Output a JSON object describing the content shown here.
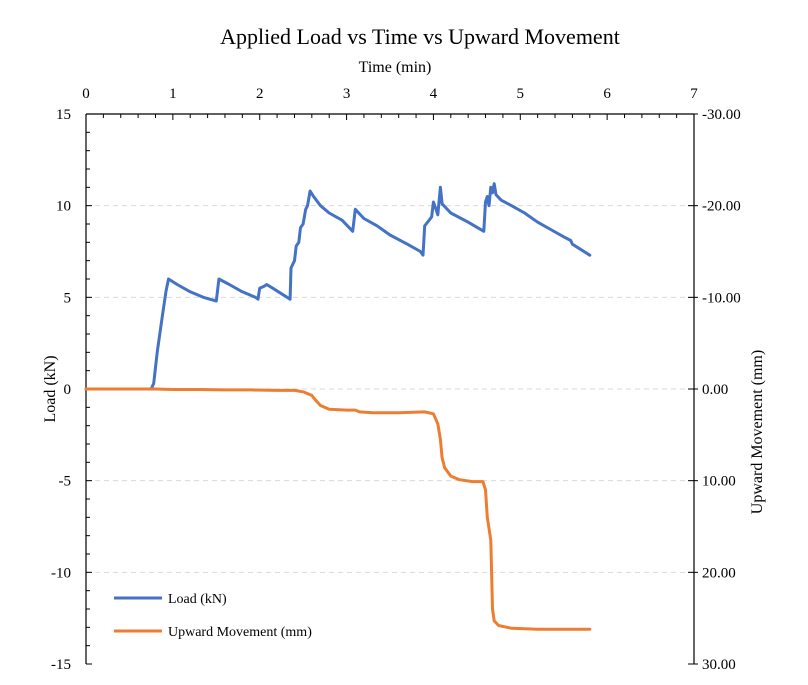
{
  "chart_data": {
    "type": "line",
    "title": "Applied Load vs Time vs Upward Movement",
    "xlabel": "Time (min)",
    "ylabel_left": "Load  (kN)",
    "ylabel_right": "Upward  Movement (mm)",
    "xlim": [
      0,
      7
    ],
    "ylim_left": [
      -15,
      15
    ],
    "ylim_right": [
      -30,
      30
    ],
    "right_axis_reversed": true,
    "x_ticks": [
      "0",
      "1",
      "2",
      "3",
      "4",
      "5",
      "6",
      "7"
    ],
    "y_left_ticks": [
      "15",
      "10",
      "5",
      "0",
      "-5",
      "-10",
      "-15"
    ],
    "y_right_ticks": [
      "-30.00",
      "-20.00",
      "-10.00",
      "0.00",
      "10.00",
      "20.00",
      "30.00"
    ],
    "x_axis_position": "top",
    "grid": "horizontal dashed",
    "legend_position": "bottom-left",
    "series": [
      {
        "name": "Load (kN)",
        "axis": "left",
        "color": "#4472C4",
        "points": [
          [
            0,
            0
          ],
          [
            0.75,
            0
          ],
          [
            0.78,
            0.3
          ],
          [
            0.82,
            2
          ],
          [
            0.88,
            4
          ],
          [
            0.92,
            5.3
          ],
          [
            0.95,
            6.0
          ],
          [
            1.05,
            5.7
          ],
          [
            1.2,
            5.3
          ],
          [
            1.35,
            5.0
          ],
          [
            1.5,
            4.8
          ],
          [
            1.53,
            6.0
          ],
          [
            1.65,
            5.7
          ],
          [
            1.8,
            5.3
          ],
          [
            1.95,
            5.0
          ],
          [
            1.98,
            4.9
          ],
          [
            2.0,
            5.5
          ],
          [
            2.05,
            5.6
          ],
          [
            2.08,
            5.7
          ],
          [
            2.15,
            5.5
          ],
          [
            2.25,
            5.2
          ],
          [
            2.35,
            4.9
          ],
          [
            2.36,
            6.6
          ],
          [
            2.4,
            7.0
          ],
          [
            2.42,
            7.8
          ],
          [
            2.45,
            8.0
          ],
          [
            2.47,
            8.8
          ],
          [
            2.5,
            9.0
          ],
          [
            2.53,
            9.8
          ],
          [
            2.55,
            10.0
          ],
          [
            2.58,
            10.8
          ],
          [
            2.62,
            10.5
          ],
          [
            2.7,
            10.0
          ],
          [
            2.8,
            9.6
          ],
          [
            2.95,
            9.2
          ],
          [
            3.07,
            8.6
          ],
          [
            3.1,
            9.8
          ],
          [
            3.2,
            9.3
          ],
          [
            3.35,
            8.9
          ],
          [
            3.5,
            8.4
          ],
          [
            3.7,
            7.9
          ],
          [
            3.85,
            7.5
          ],
          [
            3.88,
            7.3
          ],
          [
            3.9,
            8.9
          ],
          [
            3.95,
            9.2
          ],
          [
            3.98,
            9.4
          ],
          [
            4.0,
            10.2
          ],
          [
            4.03,
            9.8
          ],
          [
            4.05,
            9.5
          ],
          [
            4.08,
            11.0
          ],
          [
            4.1,
            10.1
          ],
          [
            4.2,
            9.6
          ],
          [
            4.4,
            9.1
          ],
          [
            4.58,
            8.6
          ],
          [
            4.6,
            10.2
          ],
          [
            4.62,
            10.5
          ],
          [
            4.64,
            10.0
          ],
          [
            4.66,
            11.0
          ],
          [
            4.68,
            10.7
          ],
          [
            4.7,
            11.2
          ],
          [
            4.72,
            10.6
          ],
          [
            4.78,
            10.3
          ],
          [
            4.9,
            10.0
          ],
          [
            5.05,
            9.6
          ],
          [
            5.2,
            9.1
          ],
          [
            5.35,
            8.7
          ],
          [
            5.5,
            8.3
          ],
          [
            5.58,
            8.1
          ],
          [
            5.6,
            7.9
          ],
          [
            5.7,
            7.6
          ],
          [
            5.8,
            7.3
          ]
        ]
      },
      {
        "name": "Upward Movement (mm)",
        "axis": "right",
        "color": "#ED7D31",
        "points": [
          [
            0,
            0
          ],
          [
            0.8,
            0
          ],
          [
            1.0,
            0.05
          ],
          [
            1.3,
            0.05
          ],
          [
            1.6,
            0.1
          ],
          [
            1.9,
            0.1
          ],
          [
            2.2,
            0.15
          ],
          [
            2.4,
            0.15
          ],
          [
            2.5,
            0.3
          ],
          [
            2.6,
            0.7
          ],
          [
            2.65,
            1.3
          ],
          [
            2.7,
            1.8
          ],
          [
            2.8,
            2.2
          ],
          [
            3.0,
            2.3
          ],
          [
            3.1,
            2.3
          ],
          [
            3.15,
            2.5
          ],
          [
            3.3,
            2.6
          ],
          [
            3.6,
            2.6
          ],
          [
            3.9,
            2.5
          ],
          [
            4.0,
            2.7
          ],
          [
            4.05,
            3.8
          ],
          [
            4.08,
            5.5
          ],
          [
            4.1,
            7.5
          ],
          [
            4.13,
            8.6
          ],
          [
            4.2,
            9.5
          ],
          [
            4.3,
            9.9
          ],
          [
            4.45,
            10.1
          ],
          [
            4.57,
            10.1
          ],
          [
            4.6,
            11.0
          ],
          [
            4.62,
            14.0
          ],
          [
            4.64,
            15.2
          ],
          [
            4.66,
            16.5
          ],
          [
            4.67,
            20.0
          ],
          [
            4.68,
            24.0
          ],
          [
            4.7,
            25.3
          ],
          [
            4.75,
            25.8
          ],
          [
            4.9,
            26.1
          ],
          [
            5.2,
            26.2
          ],
          [
            5.5,
            26.2
          ],
          [
            5.8,
            26.2
          ]
        ]
      }
    ]
  },
  "legend": {
    "items": [
      {
        "label": "Load (kN)",
        "color": "#4472C4"
      },
      {
        "label": "Upward Movement (mm)",
        "color": "#ED7D31"
      }
    ]
  }
}
